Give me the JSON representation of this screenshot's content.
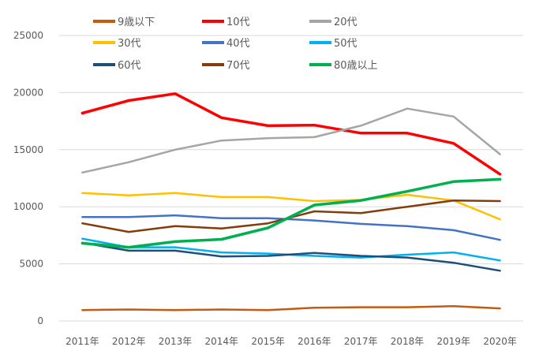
{
  "chart_data": {
    "type": "line",
    "title": "",
    "xlabel": "",
    "ylabel": "",
    "ylim": [
      0,
      25000
    ],
    "yticks": [
      0,
      5000,
      10000,
      15000,
      20000,
      25000
    ],
    "grid": true,
    "legend_position": "top",
    "categories": [
      "2011年",
      "2012年",
      "2013年",
      "2014年",
      "2015年",
      "2016年",
      "2017年",
      "2018年",
      "2019年",
      "2020年"
    ],
    "series": [
      {
        "name": "9歳以下",
        "color": "#c55a11",
        "values": [
          950,
          1000,
          950,
          1000,
          950,
          1150,
          1200,
          1200,
          1300,
          1100
        ]
      },
      {
        "name": "10代",
        "color": "#ff0000",
        "values": [
          18200,
          19300,
          19900,
          17800,
          17100,
          17150,
          16450,
          16450,
          15550,
          12850
        ]
      },
      {
        "name": "20代",
        "color": "#a5a5a5",
        "values": [
          13000,
          13900,
          15000,
          15800,
          16000,
          16100,
          17100,
          18600,
          17900,
          14600
        ]
      },
      {
        "name": "30代",
        "color": "#ffc000",
        "values": [
          11200,
          11000,
          11200,
          10850,
          10850,
          10500,
          10600,
          11050,
          10550,
          8900
        ]
      },
      {
        "name": "40代",
        "color": "#4472c4",
        "values": [
          9100,
          9100,
          9250,
          9000,
          9000,
          8800,
          8500,
          8300,
          7950,
          7100
        ]
      },
      {
        "name": "50代",
        "color": "#00b0f0",
        "values": [
          7200,
          6450,
          6450,
          6000,
          5900,
          5700,
          5550,
          5800,
          6000,
          5300
        ]
      },
      {
        "name": "60代",
        "color": "#1f4e79",
        "values": [
          6850,
          6150,
          6150,
          5650,
          5700,
          5950,
          5700,
          5550,
          5100,
          4400
        ]
      },
      {
        "name": "70代",
        "color": "#843c0c",
        "values": [
          8550,
          7800,
          8300,
          8100,
          8550,
          9600,
          9450,
          10000,
          10550,
          10500
        ]
      },
      {
        "name": "80歳以上",
        "color": "#00b050",
        "values": [
          6800,
          6450,
          6950,
          7150,
          8150,
          10150,
          10550,
          11350,
          12200,
          12400
        ]
      }
    ]
  }
}
